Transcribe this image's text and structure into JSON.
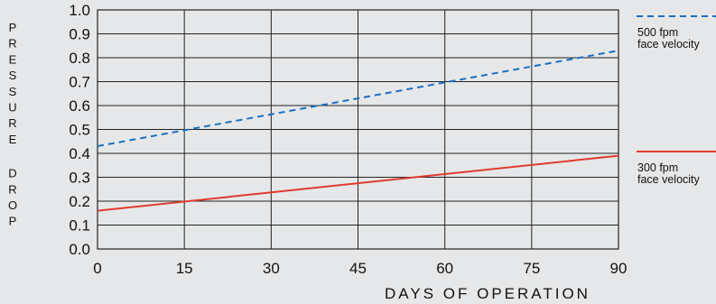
{
  "chart_data": {
    "type": "line",
    "title": "",
    "xlabel": "DAYS OF OPERATION",
    "ylabel": "PRESSURE DROP",
    "xlim": [
      0,
      90
    ],
    "ylim": [
      0.0,
      1.0
    ],
    "x_ticks": [
      "0",
      "15",
      "30",
      "45",
      "60",
      "75",
      "90"
    ],
    "y_ticks": [
      "0.0",
      "0.1",
      "0.2",
      "0.3",
      "0.4",
      "0.5",
      "0.6",
      "0.7",
      "0.8",
      "0.9",
      "1.0"
    ],
    "grid": true,
    "legend_position": "right",
    "series": [
      {
        "name_lines": [
          "500 fpm",
          "face velocity"
        ],
        "color": "#1a6fc4",
        "dash": "dashed",
        "x": [
          0,
          90
        ],
        "y": [
          0.43,
          0.83
        ]
      },
      {
        "name_lines": [
          "300 fpm",
          "face velocity"
        ],
        "color": "#e03a2f",
        "dash": "solid",
        "x": [
          0,
          90
        ],
        "y": [
          0.16,
          0.39
        ]
      }
    ]
  }
}
